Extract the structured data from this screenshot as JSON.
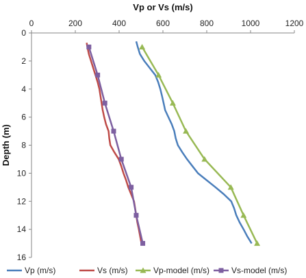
{
  "chart_data": {
    "type": "line",
    "title": "",
    "xlabel": "Vp or Vs (m/s)",
    "ylabel": "Depth (m)",
    "x_axis_position": "top",
    "y_axis_inverted": true,
    "xlim": [
      0,
      1200
    ],
    "ylim": [
      0,
      16
    ],
    "x_ticks": [
      "0",
      "200",
      "400",
      "600",
      "800",
      "1000",
      "1200"
    ],
    "y_ticks": [
      "0",
      "2",
      "4",
      "6",
      "8",
      "10",
      "12",
      "14",
      "16"
    ],
    "grid": false,
    "legend_position": "bottom",
    "series": [
      {
        "name": "Vp (m/s)",
        "color": "#4a7ebb",
        "marker": "none",
        "points": [
          [
            478,
            0.6
          ],
          [
            485,
            1.0
          ],
          [
            495,
            1.5
          ],
          [
            515,
            2.0
          ],
          [
            540,
            2.5
          ],
          [
            565,
            3.0
          ],
          [
            578,
            3.5
          ],
          [
            588,
            4.0
          ],
          [
            596,
            4.5
          ],
          [
            603,
            5.0
          ],
          [
            610,
            5.5
          ],
          [
            625,
            6.0
          ],
          [
            640,
            6.5
          ],
          [
            652,
            7.0
          ],
          [
            658,
            7.5
          ],
          [
            668,
            8.0
          ],
          [
            688,
            8.5
          ],
          [
            710,
            9.0
          ],
          [
            735,
            9.5
          ],
          [
            760,
            10.0
          ],
          [
            800,
            10.5
          ],
          [
            840,
            11.0
          ],
          [
            878,
            11.5
          ],
          [
            912,
            12.0
          ],
          [
            925,
            12.5
          ],
          [
            935,
            13.0
          ],
          [
            950,
            13.5
          ],
          [
            968,
            14.0
          ],
          [
            985,
            14.5
          ],
          [
            1005,
            15.0
          ]
        ]
      },
      {
        "name": "Vs (m/s)",
        "color": "#be4b48",
        "marker": "none",
        "points": [
          [
            252,
            0.7
          ],
          [
            255,
            1.0
          ],
          [
            262,
            1.5
          ],
          [
            272,
            2.0
          ],
          [
            282,
            2.5
          ],
          [
            292,
            3.0
          ],
          [
            302,
            3.5
          ],
          [
            310,
            4.0
          ],
          [
            315,
            4.5
          ],
          [
            320,
            5.0
          ],
          [
            325,
            5.5
          ],
          [
            332,
            6.0
          ],
          [
            340,
            6.5
          ],
          [
            352,
            7.0
          ],
          [
            355,
            7.5
          ],
          [
            360,
            8.0
          ],
          [
            378,
            8.5
          ],
          [
            398,
            9.0
          ],
          [
            410,
            9.5
          ],
          [
            420,
            10.0
          ],
          [
            432,
            10.5
          ],
          [
            442,
            11.0
          ],
          [
            455,
            11.5
          ],
          [
            468,
            12.0
          ],
          [
            473,
            12.5
          ],
          [
            478,
            13.0
          ],
          [
            483,
            13.5
          ],
          [
            490,
            14.0
          ],
          [
            496,
            14.5
          ],
          [
            502,
            15.0
          ]
        ]
      },
      {
        "name": "Vp-model (m/s)",
        "color": "#98b954",
        "marker": "triangle",
        "points": [
          [
            505,
            1.0
          ],
          [
            580,
            3.0
          ],
          [
            645,
            5.0
          ],
          [
            705,
            7.0
          ],
          [
            790,
            9.0
          ],
          [
            910,
            11.0
          ],
          [
            968,
            13.0
          ],
          [
            1030,
            15.0
          ]
        ]
      },
      {
        "name": "Vs-model (m/s)",
        "color": "#7d5fa0",
        "marker": "square",
        "points": [
          [
            262,
            1.0
          ],
          [
            302,
            3.0
          ],
          [
            335,
            5.0
          ],
          [
            375,
            7.0
          ],
          [
            410,
            9.0
          ],
          [
            455,
            11.0
          ],
          [
            478,
            13.0
          ],
          [
            508,
            15.0
          ]
        ]
      }
    ]
  }
}
